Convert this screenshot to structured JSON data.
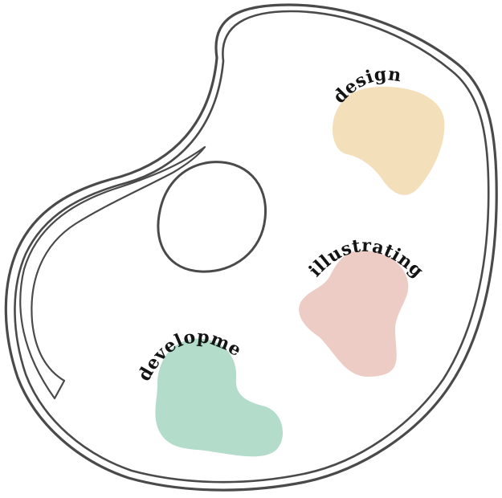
{
  "palette": {
    "outline": "#4a4a4a",
    "label": "#141414",
    "background": "#ffffff"
  },
  "blobs": [
    {
      "id": "design",
      "label": "design",
      "color": "#f3dfb9"
    },
    {
      "id": "illustrating",
      "label": "illustrating",
      "color": "#ecccc4"
    },
    {
      "id": "development",
      "label": "development",
      "color": "#b3dccb"
    }
  ]
}
